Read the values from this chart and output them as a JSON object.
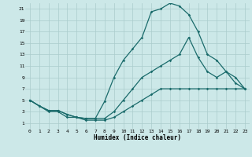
{
  "xlabel": "Humidex (Indice chaleur)",
  "xlim": [
    -0.5,
    23.5
  ],
  "ylim": [
    0,
    22
  ],
  "xticks": [
    0,
    1,
    2,
    3,
    4,
    5,
    6,
    7,
    8,
    9,
    10,
    11,
    12,
    13,
    14,
    15,
    16,
    17,
    18,
    19,
    20,
    21,
    22,
    23
  ],
  "yticks": [
    1,
    3,
    5,
    7,
    9,
    11,
    13,
    15,
    17,
    19,
    21
  ],
  "bg_color": "#cce8e8",
  "grid_color": "#aacccc",
  "line_color": "#1a6b6b",
  "curve1_x": [
    0,
    1,
    2,
    3,
    4,
    5,
    6,
    7,
    8,
    9,
    10,
    11,
    12,
    13,
    14,
    15,
    16,
    17,
    18,
    19,
    20,
    21,
    22,
    23
  ],
  "curve1_y": [
    5,
    4,
    3,
    3,
    2,
    2,
    1.5,
    1.5,
    1.5,
    2,
    3,
    4,
    5,
    6,
    7,
    7,
    7,
    7,
    7,
    7,
    7,
    7,
    7,
    7
  ],
  "curve2_x": [
    0,
    1,
    2,
    3,
    4,
    5,
    6,
    7,
    8,
    9,
    10,
    11,
    12,
    13,
    14,
    15,
    16,
    17,
    18,
    19,
    20,
    21,
    22,
    23
  ],
  "curve2_y": [
    5,
    4,
    3.2,
    3.2,
    2.5,
    2,
    1.8,
    1.8,
    4.8,
    9,
    12,
    14,
    16,
    20.5,
    21,
    22,
    21.5,
    20,
    17,
    13,
    12,
    10,
    9,
    7
  ],
  "curve3_x": [
    0,
    1,
    2,
    3,
    4,
    5,
    6,
    7,
    8,
    9,
    10,
    11,
    12,
    13,
    14,
    15,
    16,
    17,
    18,
    19,
    20,
    21,
    22,
    23
  ],
  "curve3_y": [
    5,
    4,
    3.2,
    3.2,
    2.5,
    2,
    1.8,
    1.8,
    1.8,
    3,
    5,
    7,
    9,
    10,
    11,
    12,
    13,
    16,
    12.5,
    10,
    9,
    10,
    8,
    7
  ]
}
